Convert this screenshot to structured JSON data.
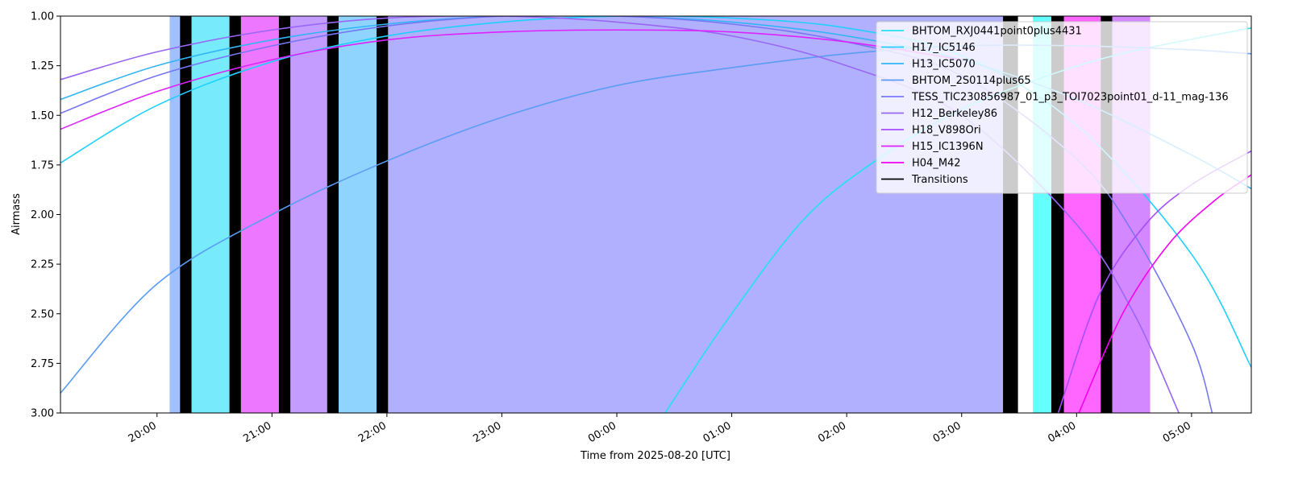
{
  "chart_data": {
    "type": "line",
    "xlabel": "Time from 2025-08-20 [UTC]",
    "ylabel": "Airmass",
    "xlim": [
      -4.84,
      5.52
    ],
    "xticks": [
      {
        "value": -4,
        "label": "20:00"
      },
      {
        "value": -3,
        "label": "21:00"
      },
      {
        "value": -2,
        "label": "22:00"
      },
      {
        "value": -1,
        "label": "23:00"
      },
      {
        "value": 0,
        "label": "00:00"
      },
      {
        "value": 1,
        "label": "01:00"
      },
      {
        "value": 2,
        "label": "02:00"
      },
      {
        "value": 3,
        "label": "03:00"
      },
      {
        "value": 4,
        "label": "04:00"
      },
      {
        "value": 5,
        "label": "05:00"
      }
    ],
    "ylim": [
      1.0,
      3.0
    ],
    "y_inverted": true,
    "yticks": [
      {
        "value": 1.0,
        "label": "1.00"
      },
      {
        "value": 1.25,
        "label": "1.25"
      },
      {
        "value": 1.5,
        "label": "1.50"
      },
      {
        "value": 1.75,
        "label": "1.75"
      },
      {
        "value": 2.0,
        "label": "2.00"
      },
      {
        "value": 2.25,
        "label": "2.25"
      },
      {
        "value": 2.5,
        "label": "2.50"
      },
      {
        "value": 2.75,
        "label": "2.75"
      },
      {
        "value": 3.0,
        "label": "3.00"
      }
    ],
    "legend": "upper right",
    "series": [
      {
        "name": "BHTOM_RXJ0441point0plus4431",
        "color": "#21e3f0",
        "x": [
          0.42,
          0.95,
          1.65,
          2.35,
          3.0,
          3.75,
          4.46,
          5.52
        ],
        "values": [
          3.0,
          2.54,
          2.01,
          1.69,
          1.47,
          1.3,
          1.18,
          1.06
        ]
      },
      {
        "name": "H17_IC5146",
        "color": "#1fd0ff",
        "x": [
          -4.84,
          -4,
          -3,
          -2,
          -1,
          0,
          1,
          2,
          3,
          4,
          5,
          5.52
        ],
        "values": [
          1.74,
          1.45,
          1.23,
          1.1,
          1.03,
          1.0,
          1.01,
          1.06,
          1.2,
          1.55,
          2.2,
          2.77
        ]
      },
      {
        "name": "H13_IC5070",
        "color": "#33b5f5",
        "x": [
          -4.84,
          -4,
          -3,
          -2,
          -1,
          0,
          1,
          2,
          3,
          4,
          5,
          5.52
        ],
        "values": [
          1.42,
          1.25,
          1.12,
          1.04,
          1.0,
          1.0,
          1.03,
          1.1,
          1.22,
          1.42,
          1.7,
          1.87
        ]
      },
      {
        "name": "BHTOM_2S0114plus65",
        "color": "#5a9cf5",
        "x": [
          -4.84,
          -4,
          -3,
          -2,
          -1,
          0,
          1,
          2,
          3,
          4,
          5,
          5.52
        ],
        "values": [
          2.9,
          2.35,
          2.0,
          1.73,
          1.51,
          1.35,
          1.26,
          1.19,
          1.15,
          1.15,
          1.17,
          1.19
        ]
      },
      {
        "name": "TESS_TIC230856987_01_p3_TOI7023point01_d-11_mag-136",
        "color": "#7777f5",
        "x": [
          -4.84,
          -4,
          -3,
          -2,
          -1,
          0,
          1,
          2,
          3,
          4,
          4.5,
          5,
          5.18
        ],
        "values": [
          1.49,
          1.3,
          1.15,
          1.05,
          1.0,
          1.0,
          1.04,
          1.13,
          1.3,
          1.72,
          2.1,
          2.65,
          3.0
        ]
      },
      {
        "name": "H12_Berkeley86",
        "color": "#9966f5",
        "x": [
          -4.84,
          -4,
          -3,
          -2,
          -1,
          0,
          1,
          2,
          3,
          4,
          4.5,
          4.89
        ],
        "values": [
          1.32,
          1.18,
          1.07,
          1.01,
          1.0,
          1.03,
          1.1,
          1.25,
          1.5,
          2.05,
          2.5,
          3.0
        ]
      },
      {
        "name": "H18_V898Ori",
        "color": "#a64dff",
        "x": [
          3.84,
          4.2,
          4.6,
          5,
          5.52
        ],
        "values": [
          3.0,
          2.4,
          2.05,
          1.85,
          1.68
        ]
      },
      {
        "name": "H15_IC1396N",
        "color": "#dd22ff",
        "x": [
          -4.84,
          -4,
          -3,
          -2,
          -1,
          0,
          1,
          2,
          3
        ],
        "values": [
          1.57,
          1.38,
          1.22,
          1.12,
          1.08,
          1.07,
          1.08,
          1.13,
          1.22
        ]
      },
      {
        "name": "H04_M42",
        "color": "#f500f5",
        "x": [
          4.02,
          4.4,
          4.8,
          5.2,
          5.52
        ],
        "values": [
          3.0,
          2.5,
          2.15,
          1.93,
          1.8
        ]
      }
    ],
    "spans": [
      {
        "start": -3.89,
        "end": -3.8,
        "color": "#a0c0ff"
      },
      {
        "start": -3.7,
        "end": -3.37,
        "color": "#77eafc"
      },
      {
        "start": -3.27,
        "end": -2.94,
        "color": "#ee77ff"
      },
      {
        "start": -2.84,
        "end": -2.52,
        "color": "#c49cff"
      },
      {
        "start": -2.42,
        "end": -2.09,
        "color": "#8fd4ff"
      },
      {
        "start": -1.99,
        "end": 3.36,
        "color": "#b0b0ff"
      },
      {
        "start": 3.62,
        "end": 3.78,
        "color": "#66ffff"
      },
      {
        "start": 3.89,
        "end": 4.21,
        "color": "#ff66ff"
      },
      {
        "start": 4.31,
        "end": 4.64,
        "color": "#d488ff"
      }
    ],
    "transitions": {
      "name": "Transitions",
      "color": "#000000",
      "spans": [
        [
          -3.8,
          -3.7
        ],
        [
          -3.37,
          -3.27
        ],
        [
          -2.94,
          -2.84
        ],
        [
          -2.52,
          -2.42
        ],
        [
          -2.09,
          -1.99
        ],
        [
          3.36,
          3.49
        ],
        [
          3.78,
          3.89
        ],
        [
          4.21,
          4.31
        ]
      ]
    }
  }
}
